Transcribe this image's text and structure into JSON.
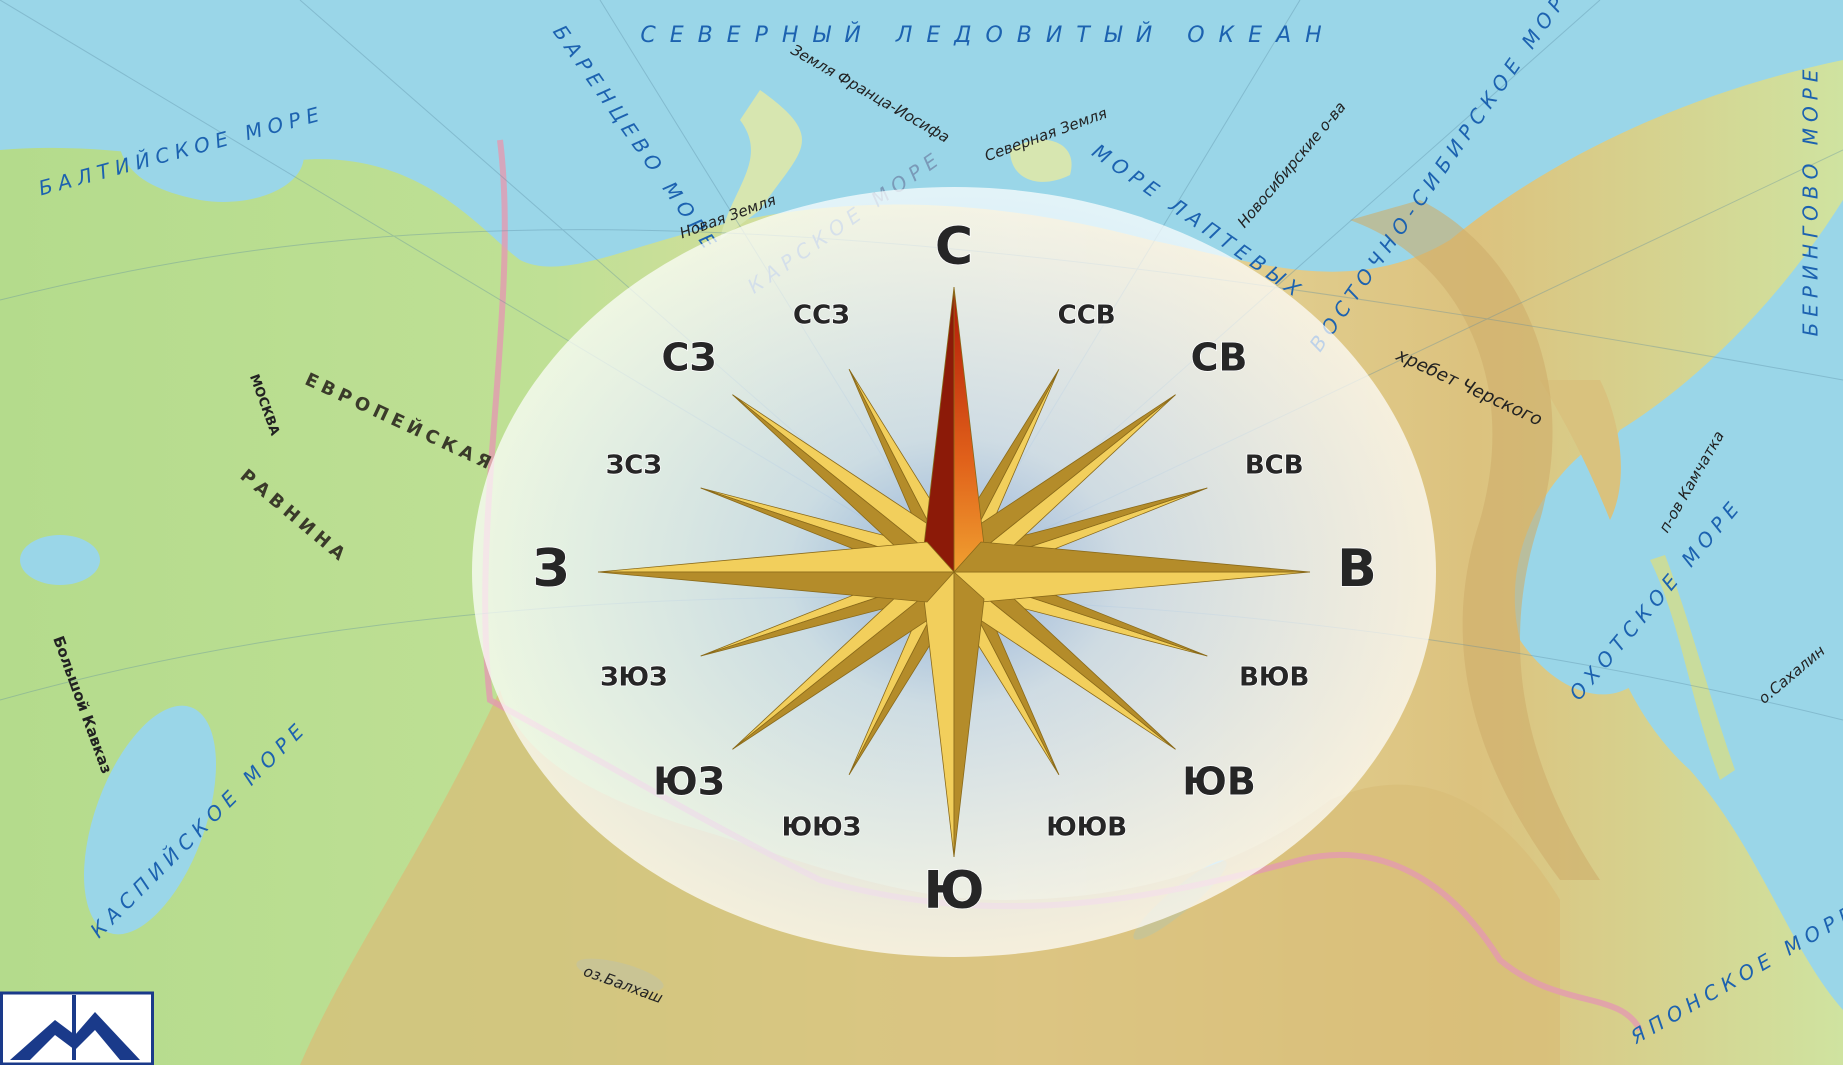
{
  "map": {
    "labels": [
      "СЕВЕРНЫЙ ЛЕДОВИТЫЙ ОКЕАН",
      "БАРЕНЦЕВО МОРЕ",
      "КАРСКОЕ МОРЕ",
      "МОРЕ ЛАПТЕВЫХ",
      "ВОСТОЧНО-СИБИРСКОЕ МОРЕ",
      "БЕРИНГОВО МОРЕ",
      "ОХОТСКОЕ МОРЕ",
      "ЯПОНСКОЕ МОРЕ",
      "КАСПИЙСКОЕ МОРЕ",
      "БАЛТИЙСКОЕ МОРЕ",
      "Новая Земля",
      "Северная Земля",
      "Земля Франца-Иосифа",
      "Новосибирские о-ва",
      "п-ов Камчатка",
      "о.Сахалин",
      "оз.Балхаш",
      "ЕВРОПЕЙСКАЯ",
      "РАВНИНА",
      "Большой Кавказ",
      "хребет Черского",
      "МОСКВА"
    ],
    "compass": {
      "points": [
        "С",
        "ССВ",
        "СВ",
        "ВСВ",
        "В",
        "ВЮВ",
        "ЮВ",
        "ЮЮВ",
        "Ю",
        "ЮЮЗ",
        "ЮЗ",
        "ЗЮЗ",
        "З",
        "ЗСЗ",
        "СЗ",
        "ССЗ"
      ]
    }
  }
}
